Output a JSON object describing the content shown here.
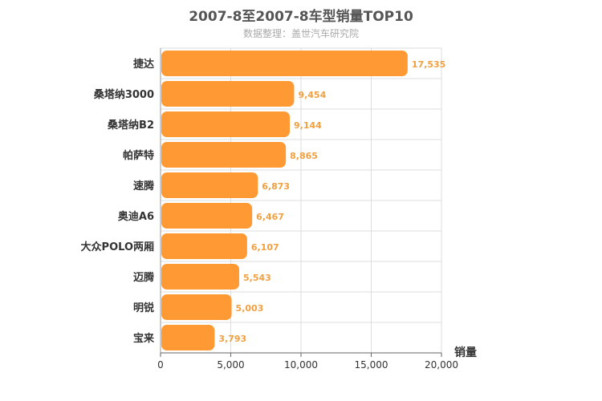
{
  "chart_data": {
    "type": "bar",
    "orientation": "horizontal",
    "title": "2007-8至2007-8车型销量TOP10",
    "subtitle": "数据整理：盖世汽车研究院",
    "xlabel": "销量",
    "xlim": [
      0,
      20000
    ],
    "xticks": [
      "0",
      "5,000",
      "10,000",
      "15,000",
      "20,000"
    ],
    "grid": true,
    "bar_color": "#ff9933",
    "label_color": "#f0a040",
    "categories": [
      "捷达",
      "桑塔纳3000",
      "桑塔纳B2",
      "帕萨特",
      "速腾",
      "奥迪A6",
      "大众POLO两厢",
      "迈腾",
      "明锐",
      "宝来"
    ],
    "values": [
      17535,
      9454,
      9144,
      8865,
      6873,
      6467,
      6107,
      5543,
      5003,
      3793
    ],
    "value_labels": [
      "17,535",
      "9,454",
      "9,144",
      "8,865",
      "6,873",
      "6,467",
      "6,107",
      "5,543",
      "5,003",
      "3,793"
    ]
  }
}
